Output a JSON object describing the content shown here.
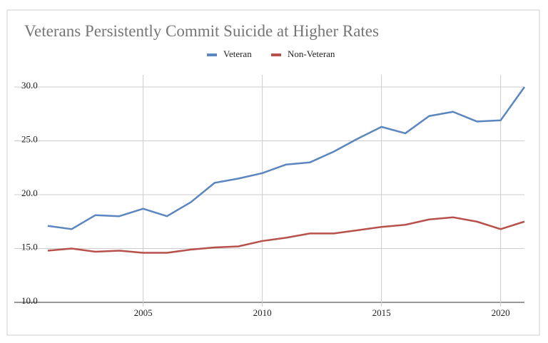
{
  "chart_data": {
    "type": "line",
    "title": "Veterans Persistently Commit Suicide at Higher Rates",
    "x": [
      2001,
      2002,
      2003,
      2004,
      2005,
      2006,
      2007,
      2008,
      2009,
      2010,
      2011,
      2012,
      2013,
      2014,
      2015,
      2016,
      2017,
      2018,
      2019,
      2020,
      2021
    ],
    "series": [
      {
        "name": "Veteran",
        "color": "#5b86bf",
        "values": [
          17.1,
          16.8,
          18.1,
          18.0,
          18.7,
          18.0,
          19.3,
          21.1,
          21.5,
          22.0,
          22.8,
          23.0,
          24.0,
          25.2,
          26.3,
          25.7,
          27.3,
          27.7,
          26.8,
          26.9,
          30.0
        ]
      },
      {
        "name": "Non-Veteran",
        "color": "#b8504b",
        "values": [
          14.8,
          15.0,
          14.7,
          14.8,
          14.6,
          14.6,
          14.9,
          15.1,
          15.2,
          15.7,
          16.0,
          16.4,
          16.4,
          16.7,
          17.0,
          17.2,
          17.7,
          17.9,
          17.5,
          16.8,
          17.5
        ]
      }
    ],
    "xlim": [
      2001,
      2021
    ],
    "xticks": [
      2005,
      2010,
      2015,
      2020
    ],
    "ylim": [
      10,
      30
    ],
    "yticks": [
      {
        "value": 10,
        "label": "10.0"
      },
      {
        "value": 15,
        "label": "15.0"
      },
      {
        "value": 20,
        "label": "20.0"
      },
      {
        "value": 25,
        "label": "25.0"
      },
      {
        "value": 30,
        "label": "30.0"
      }
    ],
    "grid": true,
    "legend": "top"
  }
}
